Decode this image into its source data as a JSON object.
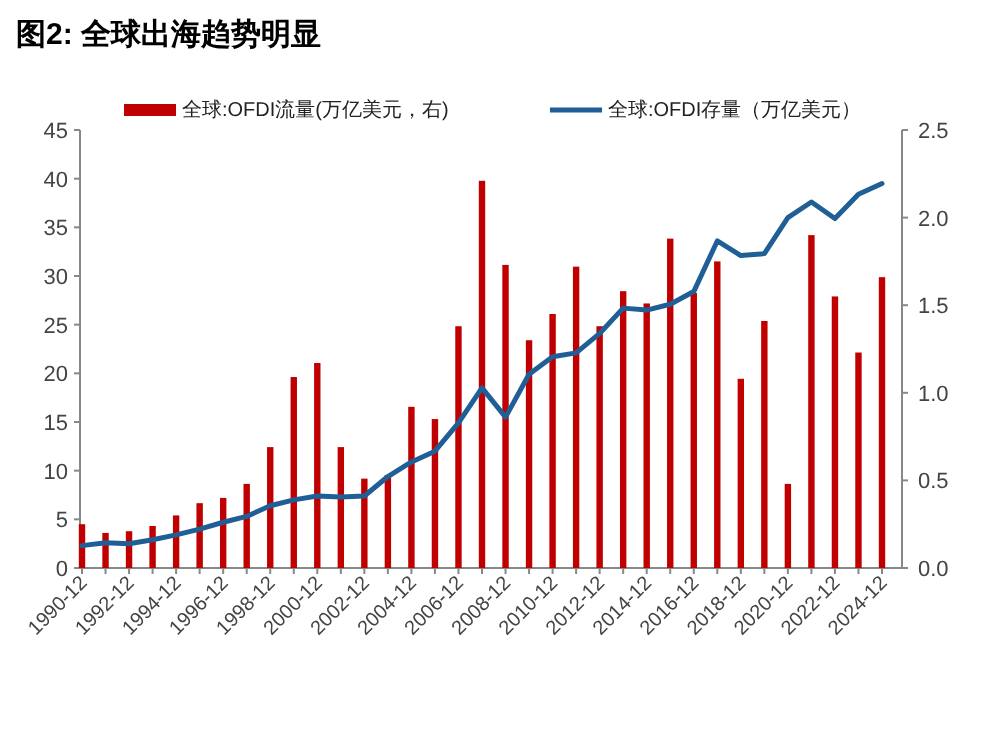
{
  "chart_data": {
    "type": "bar",
    "title": "图2:  全球出海趋势明显",
    "categories": [
      "1990-12",
      null,
      "1992-12",
      null,
      "1994-12",
      null,
      "1996-12",
      null,
      "1998-12",
      null,
      "2000-12",
      null,
      "2002-12",
      null,
      "2004-12",
      null,
      "2006-12",
      null,
      "2008-12",
      null,
      "2010-12",
      null,
      "2012-12",
      null,
      "2014-12",
      null,
      "2016-12",
      null,
      "2018-12",
      null,
      "2020-12",
      null,
      "2022-12",
      null,
      "2024-12"
    ],
    "series": [
      {
        "name": "全球:OFDI流量(万亿美元，右)",
        "axis": "y2",
        "color": "#c00000",
        "values": [
          0.25,
          0.2,
          0.21,
          0.24,
          0.3,
          0.37,
          0.4,
          0.48,
          0.69,
          1.09,
          1.17,
          0.69,
          0.51,
          0.53,
          0.92,
          0.85,
          1.38,
          2.21,
          1.73,
          1.3,
          1.45,
          1.72,
          1.38,
          1.58,
          1.51,
          1.88,
          1.57,
          1.75,
          1.08,
          1.41,
          0.48,
          1.9,
          1.55,
          1.23,
          1.66
        ]
      },
      {
        "name": "全球:OFDI存量（万亿美元）",
        "type": "line",
        "color": "#1f5f96",
        "values": [
          2.3,
          2.6,
          2.5,
          2.9,
          3.4,
          4.0,
          4.7,
          5.3,
          6.4,
          7.0,
          7.4,
          7.3,
          7.4,
          9.4,
          10.9,
          12.0,
          14.9,
          18.5,
          15.5,
          19.9,
          21.7,
          22.1,
          24.1,
          26.7,
          26.5,
          27.1,
          28.4,
          33.6,
          32.1,
          32.3,
          36.0,
          37.6,
          35.9,
          38.4,
          39.5
        ]
      }
    ],
    "ylim": [
      0,
      45
    ],
    "yticks": [
      0,
      5,
      10,
      15,
      20,
      25,
      30,
      35,
      40,
      45
    ],
    "y2lim": [
      0,
      2.5
    ],
    "y2ticks": [
      {
        "value": 0,
        "label": "0.0"
      },
      {
        "value": 0.5,
        "label": "0.5"
      },
      {
        "value": 1,
        "label": "1.0"
      },
      {
        "value": 1.5,
        "label": "1.5"
      },
      {
        "value": 2,
        "label": "2.0"
      },
      {
        "value": 2.5,
        "label": "2.5"
      }
    ],
    "legend": "top",
    "marker": "none",
    "line_style": "solid"
  }
}
